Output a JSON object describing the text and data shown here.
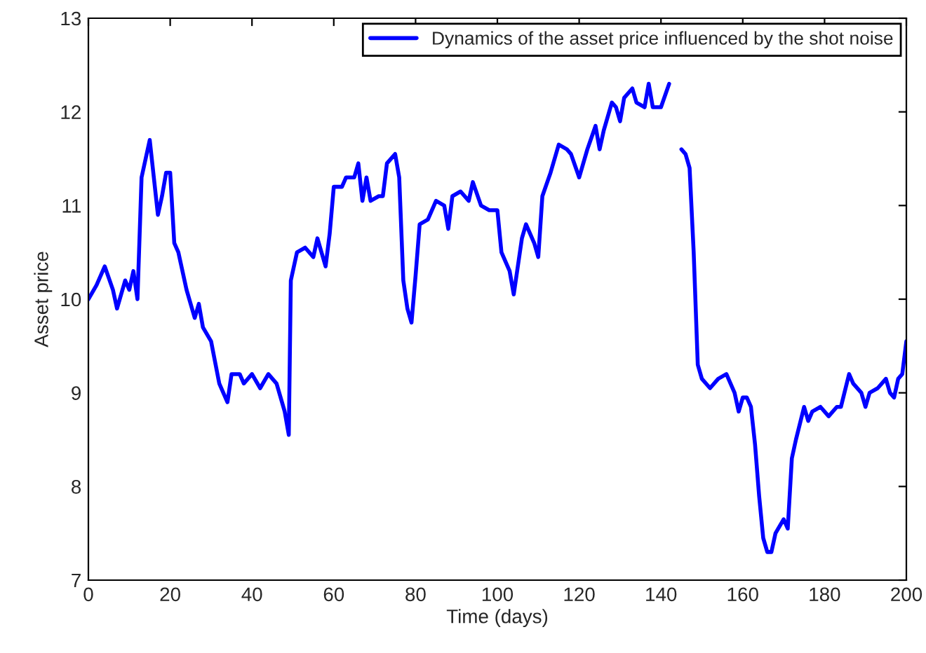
{
  "chart_data": {
    "type": "line",
    "xlabel": "Time (days)",
    "ylabel": "Asset price",
    "xlim": [
      0,
      200
    ],
    "xticks": [
      0,
      20,
      40,
      60,
      80,
      100,
      120,
      140,
      160,
      180,
      200
    ],
    "ylim": [
      7,
      13
    ],
    "yticks": [
      7,
      8,
      9,
      10,
      11,
      12,
      13
    ],
    "grid": false,
    "legend": "top right",
    "series": [
      {
        "name": "Dynamics of the asset price influenced by the shot noise",
        "color": "#0000ff",
        "x": [
          0,
          2,
          4,
          6,
          7,
          9,
          10,
          11,
          12,
          13,
          14,
          15,
          16,
          17,
          18,
          19,
          20,
          21,
          22,
          24,
          26,
          27,
          28,
          30,
          32,
          34,
          35,
          37,
          38,
          40,
          42,
          44,
          46,
          48,
          49,
          49.5,
          51,
          53,
          55,
          56,
          57,
          58,
          59,
          60,
          62,
          63,
          65,
          66,
          67,
          68,
          69,
          71,
          72,
          73,
          75,
          76,
          77,
          78,
          79,
          80,
          81,
          83,
          85,
          87,
          88,
          89,
          91,
          93,
          94,
          96,
          98,
          100,
          101,
          103,
          104,
          106,
          107,
          109,
          110,
          111,
          113,
          115,
          117,
          118,
          120,
          122,
          124,
          125,
          126,
          128,
          129,
          130,
          131,
          133,
          134,
          136,
          137,
          138,
          140,
          142,
          144,
          145,
          146,
          147,
          148,
          149,
          150,
          152,
          154,
          156,
          158,
          159,
          160,
          161,
          162,
          163,
          164,
          165,
          166,
          167,
          168,
          170,
          171,
          172,
          173,
          175,
          176,
          177,
          179,
          181,
          183,
          184,
          186,
          187,
          189,
          190,
          191,
          193,
          195,
          196,
          197,
          198,
          199,
          200
        ],
        "values": [
          10.0,
          10.15,
          10.35,
          10.1,
          9.9,
          10.2,
          10.1,
          10.3,
          10.0,
          11.3,
          11.5,
          11.7,
          11.3,
          10.9,
          11.1,
          11.35,
          11.35,
          10.6,
          10.5,
          10.1,
          9.8,
          9.95,
          9.7,
          9.55,
          9.1,
          8.9,
          9.2,
          9.2,
          9.1,
          9.2,
          9.05,
          9.2,
          9.1,
          8.8,
          8.55,
          10.2,
          10.5,
          10.55,
          10.45,
          10.65,
          10.5,
          10.35,
          10.7,
          11.2,
          11.2,
          11.3,
          11.3,
          11.45,
          11.05,
          11.3,
          11.05,
          11.1,
          11.1,
          11.45,
          11.55,
          11.3,
          10.2,
          9.9,
          9.75,
          10.25,
          10.8,
          10.85,
          11.05,
          11.0,
          10.75,
          11.1,
          11.15,
          11.05,
          11.25,
          11.0,
          10.95,
          10.95,
          10.5,
          10.3,
          10.05,
          10.65,
          10.8,
          10.6,
          10.45,
          11.1,
          11.35,
          11.65,
          11.6,
          11.55,
          11.3,
          11.6,
          11.85,
          11.6,
          11.8,
          12.1,
          12.05,
          11.9,
          12.15,
          12.25,
          12.1,
          12.05,
          12.3,
          12.05,
          12.05,
          12.3,
          null,
          11.6,
          11.55,
          11.4,
          10.5,
          9.3,
          9.15,
          9.05,
          9.15,
          9.2,
          9.0,
          8.8,
          8.95,
          8.95,
          8.85,
          8.45,
          7.9,
          7.45,
          7.3,
          7.3,
          7.5,
          7.65,
          7.55,
          8.3,
          8.5,
          8.85,
          8.7,
          8.8,
          8.85,
          8.75,
          8.85,
          8.85,
          9.2,
          9.1,
          9.0,
          8.85,
          9.0,
          9.05,
          9.15,
          9.0,
          8.95,
          9.15,
          9.2,
          9.55
        ]
      }
    ]
  }
}
